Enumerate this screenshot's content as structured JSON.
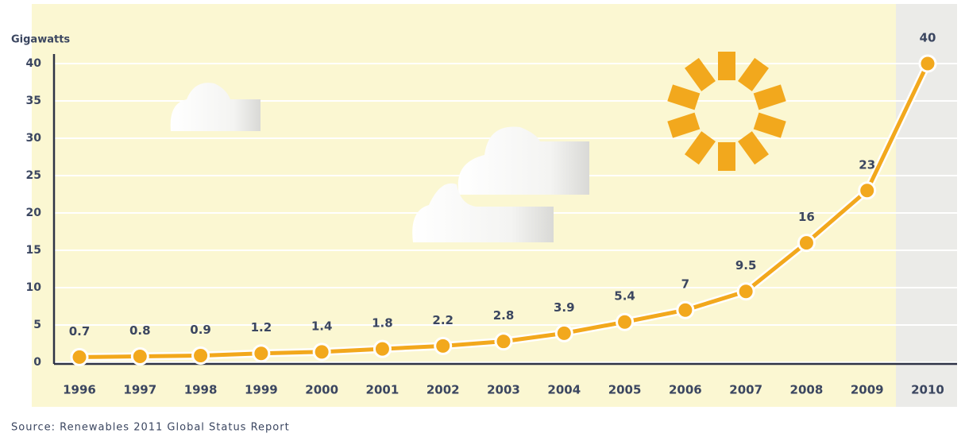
{
  "chart_data": {
    "type": "line",
    "y_label": "Gigawatts",
    "source": "Source: Renewables 2011 Global Status Report",
    "categories": [
      "1996",
      "1997",
      "1998",
      "1999",
      "2000",
      "2001",
      "2002",
      "2003",
      "2004",
      "2005",
      "2006",
      "2007",
      "2008",
      "2009",
      "2010"
    ],
    "values": [
      0.7,
      0.8,
      0.9,
      1.2,
      1.4,
      1.8,
      2.2,
      2.8,
      3.9,
      5.4,
      7,
      9.5,
      16,
      23,
      40
    ],
    "color": "#f2a81d",
    "ylim": [
      0,
      40
    ],
    "yticks": [
      0,
      5,
      10,
      15,
      20,
      25,
      30,
      35,
      40
    ],
    "grid": true
  }
}
